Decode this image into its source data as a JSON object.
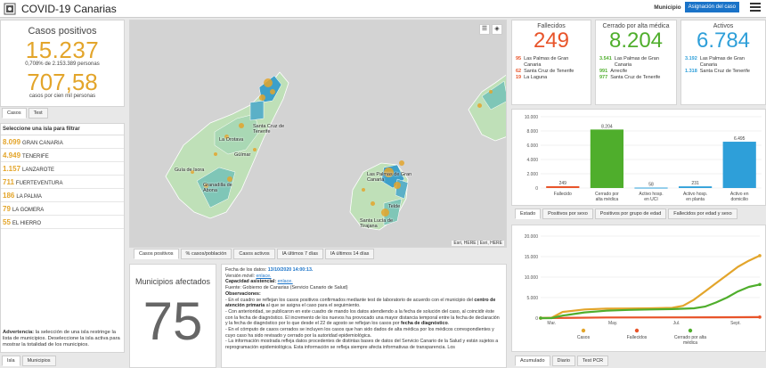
{
  "header": {
    "title": "COVID-19 Canarias",
    "municipio_label": "Municipio",
    "asignacion_button": "Asignación del caso"
  },
  "casos_positivos": {
    "title": "Casos positivos",
    "total": "15.237",
    "pct_text": "0,708% de 2.153.389 personas",
    "per_100k": "707,58",
    "per_100k_label": "casos por cien mil personas",
    "tabs": [
      "Casos",
      "Test"
    ]
  },
  "islas": {
    "heading": "Seleccione una isla para filtrar",
    "items": [
      {
        "num": "8.099",
        "name": "GRAN CANARIA"
      },
      {
        "num": "4.949",
        "name": "TENERIFE"
      },
      {
        "num": "1.157",
        "name": "LANZAROTE"
      },
      {
        "num": "711",
        "name": "FUERTEVENTURA"
      },
      {
        "num": "186",
        "name": "LA PALMA"
      },
      {
        "num": "79",
        "name": "LA GOMERA"
      },
      {
        "num": "55",
        "name": "EL HIERRO"
      }
    ],
    "advertencia_bold": "Advertencia:",
    "advertencia_text": " la selección de una isla restringe la lista de municipios. Deseleccione la isla activa para mostrar la totalidad de los municipios.",
    "tabs": [
      "Isla",
      "Municipios"
    ]
  },
  "map": {
    "labels": [
      "Santa Cruz de Tenerife",
      "La Orotava",
      "Güímar",
      "Guía de Isora",
      "Granadilla de Abona",
      "Las Palmas de Gran Canaria",
      "Telde",
      "Santa Lucía de Tirajana"
    ],
    "attribution_1": "Esri, HERE",
    "attribution_2": "Esri, HERE",
    "tabs": [
      "Casos positivos",
      "% casos/población",
      "Casos activos",
      "IA últimos 7 días",
      "IA últimos 14 días"
    ]
  },
  "municipios_afectados": {
    "title": "Municipios afectados",
    "value": "75"
  },
  "info": {
    "fecha_label": "Fecha de los datos: ",
    "fecha_value": "13/10/2020 14:00:13.",
    "movil_label": "Versión móvil: ",
    "movil_link": "enlace.",
    "capacidad_label": "Capacidad asistencial: ",
    "capacidad_link": "enlace.",
    "fuente": "Fuente: Gobierno de Canarias (Servicio Canario de Salud)",
    "obs_label": "Observaciones:",
    "p1a": "- En el cuadro se reflejan los casos positivos confirmados mediante test de laboratorio de acuerdo con el municipio del ",
    "p1b": "centro de atención primaria",
    "p1c": " al que se asigna el caso para el seguimiento.",
    "p2a": "- Con anterioridad, se publicaron en este cuadro de mando los datos atendiendo a la fecha de solución del caso, al coincidir éste con la fecha de diagnóstico. El incremento de los nuevos ha provocado una mayor distancia temporal entre la fecha de declaración y la fecha de diagnóstico por lo que desde el 22 de agosto se reflejan los casos por ",
    "p2b": "fecha de diagnóstico",
    "p2c": ".",
    "p3": "- En el cómputo de casos cerrados se incluyen los casos que han sido dados de alta médica por los médicos correspondientes y cuyo caso ha sido revisado y cerrado por la autoridad epidemiológica.",
    "p4": "- La información mostrada refleja datos procedentes de distintas bases de datos del Servicio Canario de la Salud y están sujetos a reprogramación epidemiológica. Esta información se refleja siempre afecta informativas de transparencia. Los"
  },
  "fallecidos": {
    "title": "Fallecidos",
    "value": "249",
    "rows": [
      {
        "n": "95",
        "label": "Las Palmas de Gran Canaria"
      },
      {
        "n": "62",
        "label": "Santa Cruz de Tenerife"
      },
      {
        "n": "19",
        "label": "La Laguna"
      }
    ]
  },
  "cerrado": {
    "title": "Cerrado por alta médica",
    "value": "8.204",
    "rows": [
      {
        "n": "3.541",
        "label": "Las Palmas de Gran Canaria"
      },
      {
        "n": "991",
        "label": "Arrecife"
      },
      {
        "n": "977",
        "label": "Santa Cruz de Tenerife"
      }
    ]
  },
  "activos": {
    "title": "Activos",
    "value": "6.784",
    "rows": [
      {
        "n": "3.192",
        "label": "Las Palmas de Gran Canaria"
      },
      {
        "n": "1.318",
        "label": "Santa Cruz de Tenerife"
      }
    ]
  },
  "colors": {
    "casos": "#e3a52b",
    "fallecidos": "#e8542a",
    "cerrado": "#4fae2c",
    "activos": "#2e9fd9",
    "accent": "#1a73c8"
  },
  "estado_tabs": [
    "Estado",
    "Positivos por sexo",
    "Positivos por grupo de edad",
    "Fallecidos por edad y sexo"
  ],
  "evolution_tabs": [
    "Acumulado",
    "Diario",
    "Test PCR"
  ],
  "chart_data": [
    {
      "type": "bar",
      "categories": [
        "Fallecido",
        "Cerrado por alta médica",
        "Activo hosp. en UCI",
        "Activo hosp. en planta",
        "Activo en domicilio"
      ],
      "values": [
        249,
        8204,
        58,
        231,
        6495
      ],
      "data_labels": [
        "249",
        "8.204",
        "58",
        "231",
        "6.495"
      ],
      "colors": [
        "#e8542a",
        "#4fae2c",
        "#2e9fd9",
        "#2e9fd9",
        "#2e9fd9"
      ],
      "ylim": [
        0,
        10000
      ],
      "yticks": [
        0,
        2000,
        4000,
        6000,
        8000,
        10000
      ],
      "ytick_labels": [
        "0",
        "2.000",
        "4.000",
        "6.000",
        "8.000",
        "10.000"
      ],
      "grid": true
    },
    {
      "type": "line",
      "x_labels": [
        "Mar.",
        "May.",
        "Jul.",
        "Sept."
      ],
      "x_label_pos": [
        0.05,
        0.33,
        0.62,
        0.89
      ],
      "ylim": [
        0,
        20000
      ],
      "yticks": [
        0,
        5000,
        10000,
        15000,
        20000
      ],
      "ytick_labels": [
        "0",
        "5.000",
        "10.000",
        "15.000",
        "20.000"
      ],
      "grid": true,
      "legend": "bottom",
      "series": [
        {
          "name": "Casos",
          "color": "#e3a52b",
          "t": [
            0,
            0.05,
            0.1,
            0.2,
            0.3,
            0.4,
            0.5,
            0.6,
            0.65,
            0.7,
            0.75,
            0.8,
            0.85,
            0.9,
            0.95,
            1.0
          ],
          "y": [
            0,
            80,
            1500,
            2100,
            2300,
            2350,
            2400,
            2500,
            3000,
            4500,
            6500,
            8500,
            10500,
            12500,
            14000,
            15237
          ]
        },
        {
          "name": "Fallecidos",
          "color": "#e8542a",
          "t": [
            0,
            0.1,
            0.3,
            0.6,
            0.8,
            1.0
          ],
          "y": [
            0,
            50,
            150,
            170,
            200,
            249
          ]
        },
        {
          "name": "Cerrado por alta médica",
          "color": "#4fae2c",
          "t": [
            0,
            0.05,
            0.1,
            0.2,
            0.3,
            0.4,
            0.5,
            0.6,
            0.7,
            0.75,
            0.8,
            0.85,
            0.9,
            0.95,
            1.0
          ],
          "y": [
            0,
            0,
            600,
            1400,
            1800,
            2000,
            2100,
            2200,
            2400,
            2800,
            3800,
            5000,
            6500,
            7600,
            8204
          ]
        }
      ]
    }
  ]
}
